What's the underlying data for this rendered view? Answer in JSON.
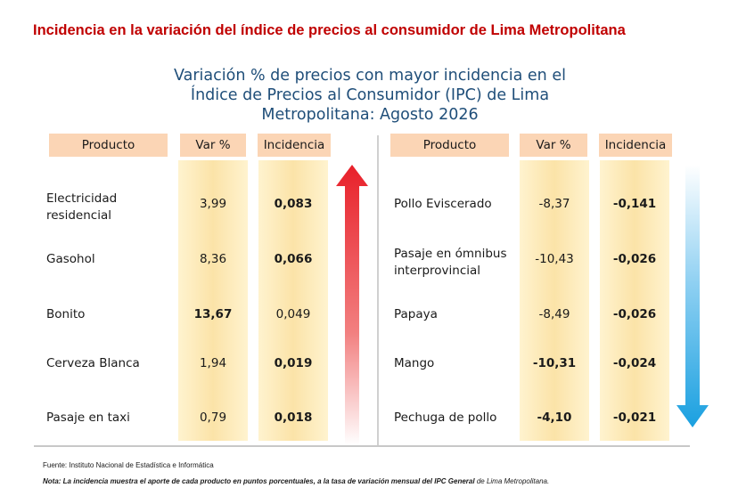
{
  "page_heading": "Incidencia en la variación del índice de precios al consumidor de Lima Metropolitana",
  "chart_title_lines": [
    "Variación % de precios con mayor incidencia en el",
    "Índice de Precios al Consumidor (IPC) de Lima",
    "Metropolitana: Agosto 2026"
  ],
  "headers": {
    "producto": "Producto",
    "var": "Var %",
    "incidencia": "Incidencia"
  },
  "colors": {
    "header_bg": "#fbd5b5",
    "title": "#1f4e79",
    "heading": "#c00000",
    "up_arrow": "#e8202a",
    "down_arrow": "#1aa0e0"
  },
  "footer": {
    "source": "Fuente: Instituto Nacional de Estadística e Informática",
    "note_bold": "Nota: La incidencia muestra el aporte de cada producto en puntos porcentuales, a la tasa de variación mensual del IPC General",
    "note_rest": " de Lima Metropolitana."
  },
  "chart_data": {
    "type": "table",
    "columns": [
      "Producto",
      "Var %",
      "Incidencia"
    ],
    "up": [
      {
        "producto": "Electricidad residencial",
        "var": "3,99",
        "incidencia": "0,083",
        "bold_var": false,
        "bold_inc": true
      },
      {
        "producto": "Gasohol",
        "var": "8,36",
        "incidencia": "0,066",
        "bold_var": false,
        "bold_inc": true
      },
      {
        "producto": "Bonito",
        "var": "13,67",
        "incidencia": "0,049",
        "bold_var": true,
        "bold_inc": false
      },
      {
        "producto": "Cerveza Blanca",
        "var": "1,94",
        "incidencia": "0,019",
        "bold_var": false,
        "bold_inc": true
      },
      {
        "producto": "Pasaje en taxi",
        "var": "0,79",
        "incidencia": "0,018",
        "bold_var": false,
        "bold_inc": true
      }
    ],
    "down": [
      {
        "producto": "Pollo Eviscerado",
        "var": "-8,37",
        "incidencia": "-0,141",
        "bold_var": false,
        "bold_inc": true
      },
      {
        "producto": "Pasaje en ómnibus interprovincial",
        "var": "-10,43",
        "incidencia": "-0,026",
        "bold_var": false,
        "bold_inc": true
      },
      {
        "producto": "Papaya",
        "var": "-8,49",
        "incidencia": "-0,026",
        "bold_var": false,
        "bold_inc": true
      },
      {
        "producto": "Mango",
        "var": "-10,31",
        "incidencia": "-0,024",
        "bold_var": true,
        "bold_inc": true
      },
      {
        "producto": "Pechuga de pollo",
        "var": "-4,10",
        "incidencia": "-0,021",
        "bold_var": true,
        "bold_inc": true
      }
    ]
  }
}
